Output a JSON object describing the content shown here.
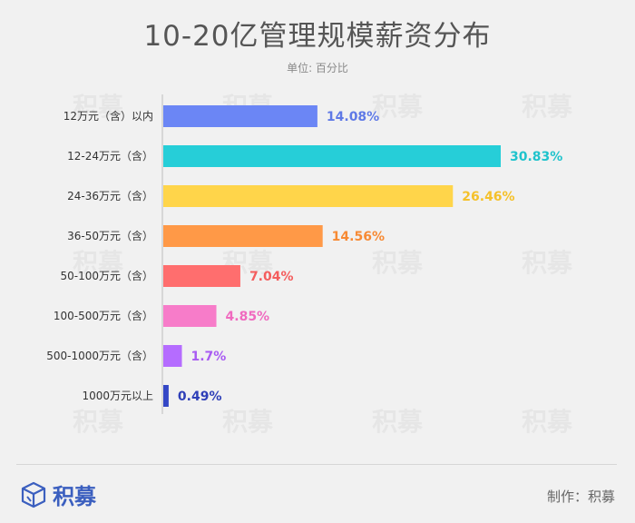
{
  "title": "10-20亿管理规模薪资分布",
  "unit_label": "单位: 百分比",
  "brand": {
    "name": "积募"
  },
  "credit": "制作：积募",
  "chart_data": {
    "type": "bar",
    "orientation": "horizontal",
    "title": "10-20亿管理规模薪资分布",
    "unit": "单位: 百分比",
    "categories": [
      "12万元（含）以内",
      "12-24万元（含）",
      "24-36万元（含）",
      "36-50万元（含）",
      "50-100万元（含）",
      "100-500万元（含）",
      "500-1000万元（含）",
      "1000万元以上"
    ],
    "values": [
      14.08,
      30.83,
      26.46,
      14.56,
      7.04,
      4.85,
      1.7,
      0.49
    ],
    "labels": [
      "14.08%",
      "30.83%",
      "26.46%",
      "14.56%",
      "7.04%",
      "4.85%",
      "1.7%",
      "0.49%"
    ],
    "colors": [
      "#6b86f5",
      "#26ced8",
      "#ffd54a",
      "#ff9947",
      "#ff6e6e",
      "#f77cc9",
      "#b56cff",
      "#3447c6"
    ],
    "label_colors": [
      "#5f79e6",
      "#1fc3cc",
      "#f5c12a",
      "#f78a34",
      "#f45d5d",
      "#f06abf",
      "#a85bf2",
      "#2e3fb8"
    ],
    "xlim": [
      0,
      30.83
    ],
    "grid": false,
    "legend": "none"
  }
}
